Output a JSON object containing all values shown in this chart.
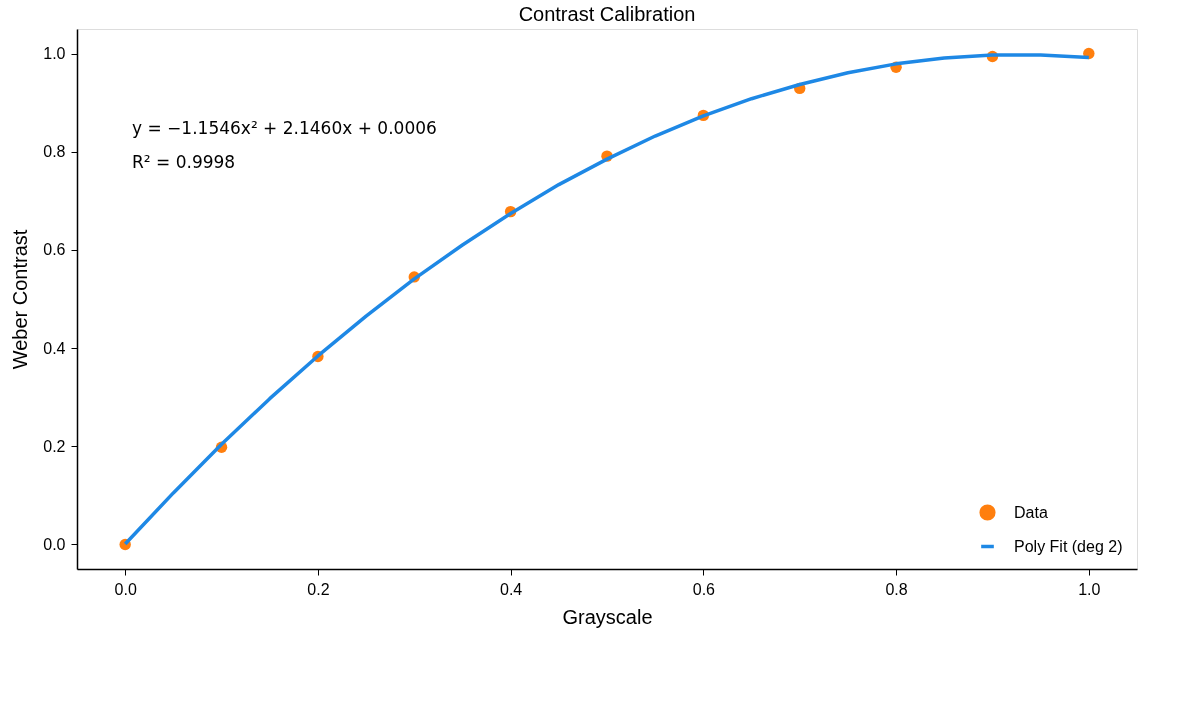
{
  "chart_data": {
    "type": "scatter",
    "title": "Contrast Calibration",
    "xlabel": "Grayscale",
    "ylabel": "Weber Contrast",
    "xlim": [
      -0.05,
      1.05
    ],
    "ylim": [
      -0.05,
      1.05
    ],
    "xticks": [
      {
        "value": 0,
        "label": "0.0"
      },
      0.2,
      0.4,
      0.6,
      0.8,
      {
        "value": 1,
        "label": "1.0"
      }
    ],
    "yticks": [
      {
        "value": 0,
        "label": "0.0"
      },
      0.2,
      0.4,
      0.6,
      0.8,
      {
        "value": 1,
        "label": "1.0"
      }
    ],
    "grid": false,
    "legend": "bottom right",
    "annotations": [
      "y = −1.1546x² + 2.1460x + 0.0006",
      "R² = 0.9998"
    ],
    "series": [
      {
        "name": "Data",
        "marker": "circle",
        "color": "#ff7f0e",
        "x": [
          0,
          0.1,
          0.2,
          0.3,
          0.4,
          0.5,
          0.6,
          0.7,
          0.8,
          0.9,
          1.0
        ],
        "values": [
          0.0,
          0.198,
          0.383,
          0.545,
          0.678,
          0.791,
          0.874,
          0.929,
          0.972,
          0.994,
          1.0
        ]
      },
      {
        "name": "Poly Fit (deg 2)",
        "type": "line",
        "color": "#1e88e5",
        "line_style": "solid",
        "x": [
          0,
          0.05,
          0.1,
          0.15,
          0.2,
          0.25,
          0.3,
          0.35,
          0.4,
          0.45,
          0.5,
          0.55,
          0.6,
          0.65,
          0.7,
          0.75,
          0.8,
          0.85,
          0.9,
          0.95,
          1.0
        ],
        "values": [
          0.001,
          0.105,
          0.204,
          0.297,
          0.384,
          0.465,
          0.541,
          0.61,
          0.674,
          0.733,
          0.785,
          0.832,
          0.873,
          0.908,
          0.937,
          0.961,
          0.979,
          0.991,
          0.997,
          0.997,
          0.992
        ]
      }
    ]
  }
}
